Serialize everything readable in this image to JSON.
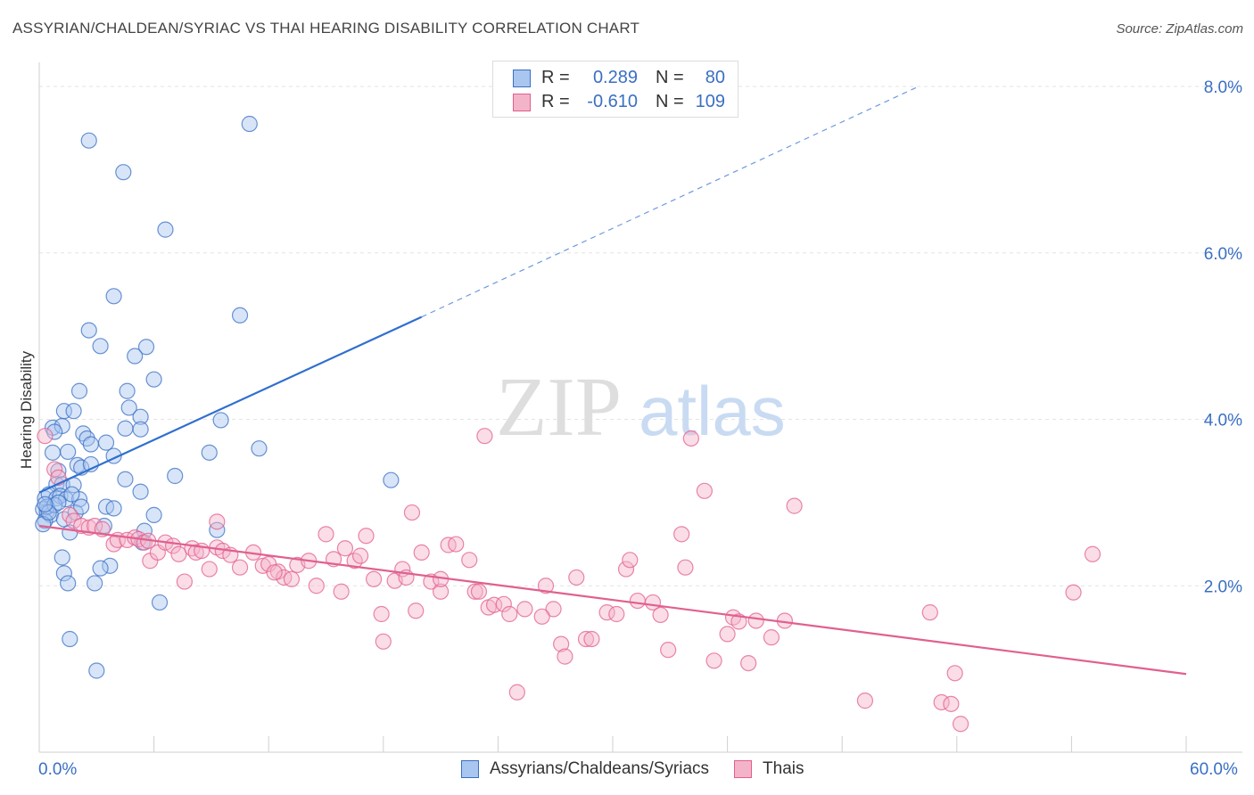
{
  "title": "ASSYRIAN/CHALDEAN/SYRIAC VS THAI HEARING DISABILITY CORRELATION CHART",
  "source": "Source: ZipAtlas.com",
  "watermark": {
    "zip": "ZIP",
    "atlas": "atlas"
  },
  "colors": {
    "blue": "#3a6fc4",
    "blue_fill": "#a8c6ef",
    "blue_line": "#2f6fcf",
    "pink": "#e35d8e",
    "pink_fill": "#f3b4c9",
    "pink_line": "#e0608f",
    "grid": "#e3e3e3",
    "axis_text": "#3a6fc4"
  },
  "legend": {
    "rows": [
      {
        "r_label": "R =",
        "r_value": "0.289",
        "n_label": "N =",
        "n_value": "80"
      },
      {
        "r_label": "R =",
        "r_value": "-0.610",
        "n_label": "N =",
        "n_value": "109"
      }
    ]
  },
  "bottom_legend": [
    "Assyrians/Chaldeans/Syriacs",
    "Thais"
  ],
  "x_axis": {
    "min_label": "0.0%",
    "max_label": "60.0%"
  },
  "chart_data": {
    "type": "scatter",
    "xlabel": "",
    "ylabel": "Hearing Disability",
    "xlim": [
      0,
      60
    ],
    "ylim": [
      0,
      8.5
    ],
    "y_ticks": [
      2.0,
      4.0,
      6.0,
      8.0
    ],
    "y_tick_labels": [
      "2.0%",
      "4.0%",
      "6.0%",
      "8.0%"
    ],
    "grid": true,
    "legend_position": "top-center",
    "series": [
      {
        "name": "Assyrians/Chaldeans/Syriacs",
        "color": "#3a6fc4",
        "r": 0.289,
        "n": 80,
        "trend": {
          "x0": 0,
          "y0": 3.12,
          "x1": 20,
          "y1": 5.23,
          "dashed_to_x": 46,
          "dashed_to_y": 8.0
        },
        "points": [
          [
            2.6,
            7.35
          ],
          [
            11.0,
            7.55
          ],
          [
            4.4,
            6.97
          ],
          [
            6.6,
            6.28
          ],
          [
            3.9,
            5.48
          ],
          [
            10.5,
            5.25
          ],
          [
            2.6,
            5.07
          ],
          [
            3.2,
            4.88
          ],
          [
            5.6,
            4.87
          ],
          [
            5.0,
            4.76
          ],
          [
            6.0,
            4.48
          ],
          [
            2.1,
            4.34
          ],
          [
            4.6,
            4.34
          ],
          [
            1.3,
            4.1
          ],
          [
            1.8,
            4.1
          ],
          [
            4.7,
            4.14
          ],
          [
            5.3,
            4.03
          ],
          [
            9.5,
            3.99
          ],
          [
            0.7,
            3.9
          ],
          [
            1.2,
            3.92
          ],
          [
            4.5,
            3.89
          ],
          [
            5.3,
            3.88
          ],
          [
            0.8,
            3.85
          ],
          [
            2.3,
            3.83
          ],
          [
            2.5,
            3.77
          ],
          [
            2.7,
            3.7
          ],
          [
            3.5,
            3.72
          ],
          [
            11.5,
            3.65
          ],
          [
            8.9,
            3.6
          ],
          [
            1.5,
            3.61
          ],
          [
            0.7,
            3.6
          ],
          [
            3.9,
            3.56
          ],
          [
            2.0,
            3.45
          ],
          [
            2.2,
            3.42
          ],
          [
            2.7,
            3.46
          ],
          [
            1.0,
            3.38
          ],
          [
            7.1,
            3.32
          ],
          [
            4.5,
            3.28
          ],
          [
            0.9,
            3.22
          ],
          [
            1.2,
            3.22
          ],
          [
            1.8,
            3.21
          ],
          [
            18.4,
            3.27
          ],
          [
            5.3,
            3.13
          ],
          [
            0.3,
            3.05
          ],
          [
            0.5,
            3.1
          ],
          [
            0.9,
            3.05
          ],
          [
            1.1,
            3.08
          ],
          [
            1.4,
            3.04
          ],
          [
            2.1,
            3.04
          ],
          [
            3.5,
            2.95
          ],
          [
            3.9,
            2.93
          ],
          [
            0.2,
            2.92
          ],
          [
            0.4,
            2.89
          ],
          [
            0.6,
            2.85
          ],
          [
            1.3,
            2.8
          ],
          [
            1.9,
            2.88
          ],
          [
            6.0,
            2.85
          ],
          [
            0.3,
            2.78
          ],
          [
            3.4,
            2.72
          ],
          [
            9.3,
            2.67
          ],
          [
            5.5,
            2.66
          ],
          [
            1.6,
            2.64
          ],
          [
            5.4,
            2.52
          ],
          [
            1.2,
            2.34
          ],
          [
            3.7,
            2.24
          ],
          [
            3.2,
            2.21
          ],
          [
            1.3,
            2.15
          ],
          [
            1.5,
            2.03
          ],
          [
            2.9,
            2.03
          ],
          [
            6.3,
            1.8
          ],
          [
            1.6,
            1.36
          ],
          [
            3.0,
            0.98
          ],
          [
            0.2,
            2.74
          ],
          [
            0.4,
            2.95
          ],
          [
            0.8,
            2.97
          ],
          [
            1.0,
            3.0
          ],
          [
            0.5,
            2.88
          ],
          [
            0.3,
            2.98
          ],
          [
            1.7,
            3.1
          ],
          [
            2.2,
            2.95
          ]
        ]
      },
      {
        "name": "Thais",
        "color": "#e35d8e",
        "r": -0.61,
        "n": 109,
        "trend": {
          "x0": 0,
          "y0": 2.72,
          "x1": 60,
          "y1": 0.94
        },
        "points": [
          [
            0.3,
            3.8
          ],
          [
            0.8,
            3.4
          ],
          [
            1.0,
            3.3
          ],
          [
            1.6,
            2.85
          ],
          [
            1.8,
            2.78
          ],
          [
            2.2,
            2.72
          ],
          [
            2.6,
            2.7
          ],
          [
            2.9,
            2.72
          ],
          [
            3.3,
            2.68
          ],
          [
            3.9,
            2.5
          ],
          [
            4.1,
            2.55
          ],
          [
            4.6,
            2.55
          ],
          [
            5.0,
            2.58
          ],
          [
            5.2,
            2.56
          ],
          [
            5.5,
            2.52
          ],
          [
            5.8,
            2.3
          ],
          [
            6.2,
            2.4
          ],
          [
            6.6,
            2.52
          ],
          [
            7.0,
            2.48
          ],
          [
            7.3,
            2.38
          ],
          [
            7.6,
            2.05
          ],
          [
            8.0,
            2.45
          ],
          [
            8.2,
            2.4
          ],
          [
            8.5,
            2.42
          ],
          [
            8.9,
            2.2
          ],
          [
            9.3,
            2.46
          ],
          [
            9.3,
            2.77
          ],
          [
            9.6,
            2.42
          ],
          [
            10.0,
            2.37
          ],
          [
            10.5,
            2.22
          ],
          [
            11.2,
            2.4
          ],
          [
            11.7,
            2.24
          ],
          [
            12.0,
            2.26
          ],
          [
            12.5,
            2.17
          ],
          [
            12.8,
            2.1
          ],
          [
            13.2,
            2.08
          ],
          [
            13.5,
            2.25
          ],
          [
            14.1,
            2.3
          ],
          [
            14.5,
            2.0
          ],
          [
            15.0,
            2.62
          ],
          [
            15.4,
            2.32
          ],
          [
            15.8,
            1.93
          ],
          [
            16.0,
            2.45
          ],
          [
            16.5,
            2.3
          ],
          [
            16.8,
            2.36
          ],
          [
            17.1,
            2.6
          ],
          [
            17.5,
            2.08
          ],
          [
            17.9,
            1.66
          ],
          [
            18.0,
            1.33
          ],
          [
            18.6,
            2.06
          ],
          [
            19.0,
            2.2
          ],
          [
            19.2,
            2.1
          ],
          [
            19.5,
            2.88
          ],
          [
            19.7,
            1.7
          ],
          [
            20.0,
            2.4
          ],
          [
            20.5,
            2.05
          ],
          [
            21.0,
            1.93
          ],
          [
            21.4,
            2.49
          ],
          [
            21.8,
            2.5
          ],
          [
            22.5,
            2.31
          ],
          [
            22.8,
            1.93
          ],
          [
            23.0,
            1.93
          ],
          [
            23.3,
            3.8
          ],
          [
            23.5,
            1.74
          ],
          [
            23.8,
            1.77
          ],
          [
            24.3,
            1.78
          ],
          [
            24.6,
            1.66
          ],
          [
            25.0,
            0.72
          ],
          [
            25.4,
            1.72
          ],
          [
            26.5,
            2.0
          ],
          [
            26.9,
            1.72
          ],
          [
            27.3,
            1.3
          ],
          [
            27.5,
            1.15
          ],
          [
            28.1,
            2.1
          ],
          [
            28.6,
            1.36
          ],
          [
            28.9,
            1.36
          ],
          [
            29.7,
            1.68
          ],
          [
            30.2,
            1.66
          ],
          [
            30.7,
            2.2
          ],
          [
            30.9,
            2.31
          ],
          [
            31.3,
            1.82
          ],
          [
            32.1,
            1.8
          ],
          [
            32.5,
            1.65
          ],
          [
            32.9,
            1.23
          ],
          [
            33.6,
            2.62
          ],
          [
            33.8,
            2.22
          ],
          [
            34.1,
            3.77
          ],
          [
            34.8,
            3.14
          ],
          [
            35.3,
            1.1
          ],
          [
            36.0,
            1.42
          ],
          [
            36.3,
            1.62
          ],
          [
            36.6,
            1.57
          ],
          [
            37.1,
            1.07
          ],
          [
            37.5,
            1.58
          ],
          [
            38.3,
            1.38
          ],
          [
            39.0,
            1.58
          ],
          [
            39.5,
            2.96
          ],
          [
            43.2,
            0.62
          ],
          [
            46.6,
            1.68
          ],
          [
            47.2,
            0.6
          ],
          [
            47.7,
            0.58
          ],
          [
            47.9,
            0.95
          ],
          [
            48.2,
            0.34
          ],
          [
            54.1,
            1.92
          ],
          [
            55.1,
            2.38
          ],
          [
            5.7,
            2.54
          ],
          [
            12.3,
            2.16
          ],
          [
            21.0,
            2.08
          ],
          [
            26.3,
            1.63
          ]
        ]
      }
    ]
  }
}
